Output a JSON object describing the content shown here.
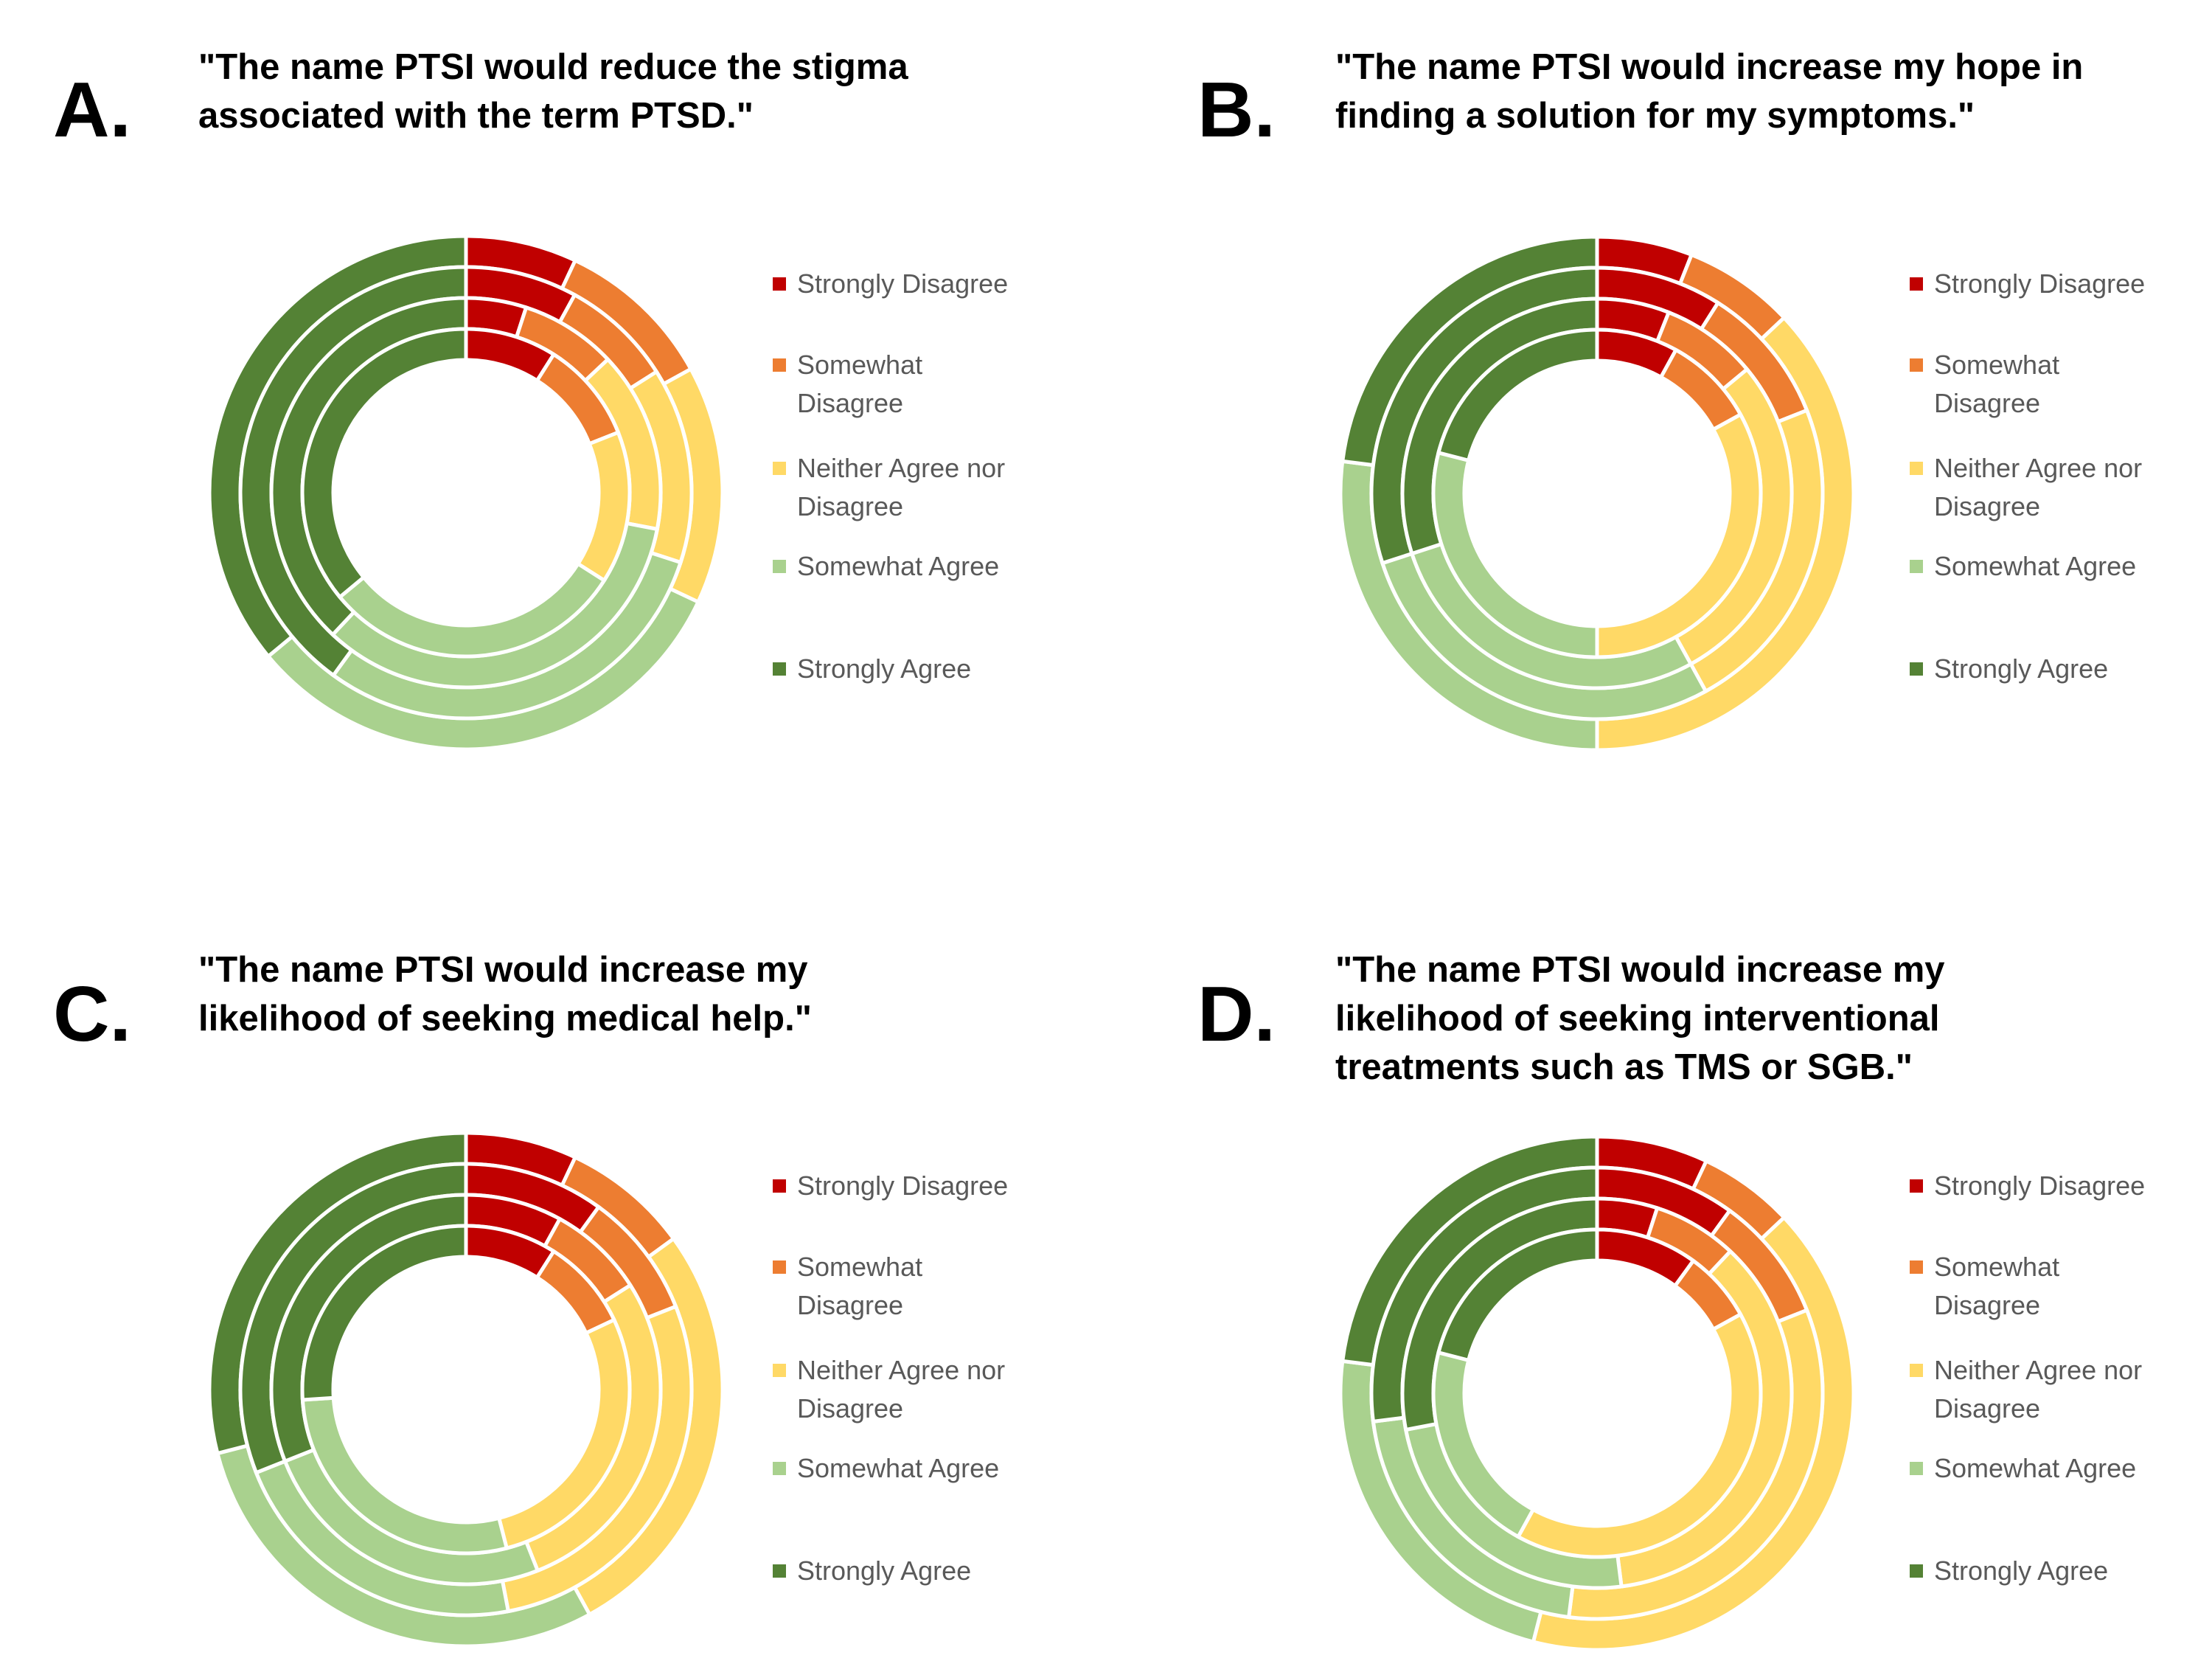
{
  "chart_data": [
    {
      "type": "donut",
      "panel_letter": "A.",
      "title_lines": [
        "\"The name PTSI would reduce the stigma",
        "associated with the term PTSD.\""
      ],
      "categories": [
        "Strongly Disagree",
        "Somewhat Disagree",
        "Neither Agree nor Disagree",
        "Somewhat Agree",
        "Strongly Agree"
      ],
      "series": [
        {
          "values": [
            7,
            10,
            15,
            32,
            36
          ]
        },
        {
          "values": [
            8,
            8,
            14,
            30,
            40
          ]
        },
        {
          "values": [
            5,
            8,
            15,
            34,
            38
          ]
        },
        {
          "values": [
            9,
            10,
            15,
            30,
            36
          ]
        }
      ],
      "legend_position": "right"
    },
    {
      "type": "donut",
      "panel_letter": "B.",
      "title_lines": [
        "\"The name PTSI would increase my hope in",
        "finding a solution for my symptoms.\""
      ],
      "categories": [
        "Strongly Disagree",
        "Somewhat Disagree",
        "Neither Agree nor Disagree",
        "Somewhat Agree",
        "Strongly Agree"
      ],
      "series": [
        {
          "values": [
            6,
            7,
            37,
            27,
            23
          ]
        },
        {
          "values": [
            9,
            10,
            23,
            28,
            30
          ]
        },
        {
          "values": [
            6,
            8,
            28,
            28,
            30
          ]
        },
        {
          "values": [
            8,
            9,
            33,
            29,
            21
          ]
        }
      ],
      "legend_position": "right"
    },
    {
      "type": "donut",
      "panel_letter": "C.",
      "title_lines": [
        "\"The name PTSI would increase my",
        "likelihood of seeking medical help.\""
      ],
      "categories": [
        "Strongly Disagree",
        "Somewhat Disagree",
        "Neither Agree nor Disagree",
        "Somewhat Agree",
        "Strongly Agree"
      ],
      "series": [
        {
          "values": [
            7,
            8,
            27,
            29,
            29
          ]
        },
        {
          "values": [
            10,
            9,
            28,
            22,
            31
          ]
        },
        {
          "values": [
            8,
            8,
            28,
            25,
            31
          ]
        },
        {
          "values": [
            9,
            9,
            28,
            28,
            26
          ]
        }
      ],
      "legend_position": "right"
    },
    {
      "type": "donut",
      "panel_letter": "D.",
      "title_lines": [
        "\"The name PTSI would increase my",
        "likelihood of seeking interventional",
        "treatments such as TMS or SGB.\""
      ],
      "categories": [
        "Strongly Disagree",
        "Somewhat Disagree",
        "Neither Agree nor Disagree",
        "Somewhat Agree",
        "Strongly Agree"
      ],
      "series": [
        {
          "values": [
            7,
            6,
            41,
            23,
            23
          ]
        },
        {
          "values": [
            10,
            9,
            33,
            21,
            27
          ]
        },
        {
          "values": [
            5,
            7,
            36,
            24,
            28
          ]
        },
        {
          "values": [
            10,
            7,
            41,
            21,
            21
          ]
        }
      ],
      "legend_position": "right"
    }
  ],
  "colors": [
    "#C00000",
    "#ED7D31",
    "#FFD966",
    "#A9D18E",
    "#548235"
  ]
}
